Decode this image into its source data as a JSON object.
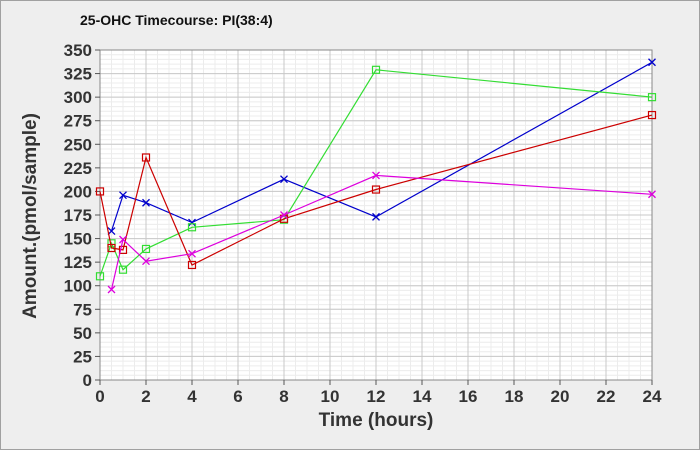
{
  "chart_data": {
    "type": "line",
    "title": "25-OHC Timecourse: PI(38:4)",
    "xlabel": "Time (hours)",
    "ylabel": "Amount.(pmol/sample)",
    "xlim": [
      0,
      24
    ],
    "ylim": [
      0,
      350
    ],
    "xticks": [
      0,
      2,
      4,
      6,
      8,
      10,
      12,
      14,
      16,
      18,
      20,
      22,
      24
    ],
    "yticks": [
      0,
      25,
      50,
      75,
      100,
      125,
      150,
      175,
      200,
      225,
      250,
      275,
      300,
      325,
      350
    ],
    "grid": true,
    "legend": "none",
    "series": [
      {
        "color": "#0000cc",
        "marker": "x",
        "x": [
          0.5,
          1,
          2,
          4,
          8,
          12,
          24
        ],
        "y": [
          158,
          196,
          188,
          167,
          213,
          173,
          337
        ]
      },
      {
        "color": "#33dd33",
        "marker": "square",
        "x": [
          0,
          0.5,
          1,
          2,
          4,
          8,
          12,
          24
        ],
        "y": [
          110,
          145,
          117,
          139,
          162,
          170,
          329,
          300
        ]
      },
      {
        "color": "#cc0000",
        "marker": "square",
        "x": [
          0,
          0.5,
          1,
          2,
          4,
          8,
          12,
          24
        ],
        "y": [
          200,
          140,
          138,
          236,
          122,
          171,
          202,
          281
        ]
      },
      {
        "color": "#dd00dd",
        "marker": "x",
        "x": [
          0.5,
          1,
          2,
          4,
          8,
          12,
          24
        ],
        "y": [
          96,
          149,
          126,
          134,
          175,
          217,
          197
        ]
      }
    ]
  }
}
